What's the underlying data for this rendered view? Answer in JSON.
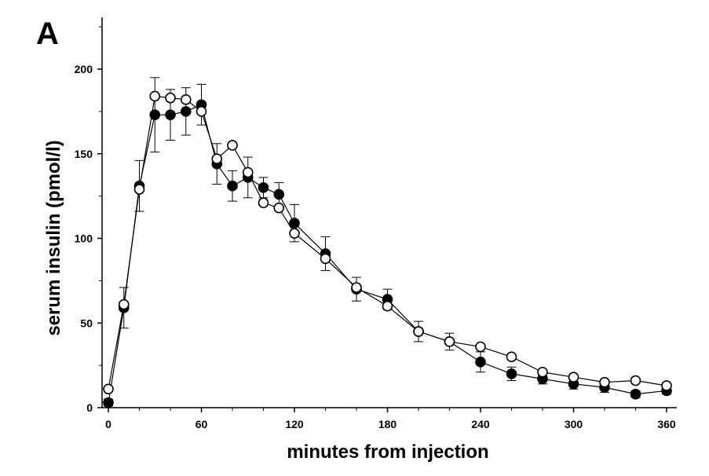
{
  "panel_label": "A",
  "chart_data": {
    "type": "line",
    "xlabel": "minutes from injection",
    "ylabel": "serum insulin (pmol/l)",
    "xlim": [
      -5,
      365
    ],
    "ylim": [
      0,
      230
    ],
    "xticks": [
      0,
      60,
      120,
      180,
      240,
      300,
      360
    ],
    "yticks": [
      0,
      50,
      100,
      150,
      200
    ],
    "x": [
      0,
      10,
      20,
      30,
      40,
      50,
      60,
      70,
      80,
      90,
      100,
      110,
      120,
      140,
      160,
      180,
      200,
      220,
      240,
      260,
      280,
      300,
      320,
      340,
      360
    ],
    "series": [
      {
        "marker": "filled-circle",
        "color": "#000000",
        "values": [
          3,
          59,
          131,
          173,
          173,
          175,
          179,
          144,
          131,
          136,
          130,
          126,
          109,
          91,
          70,
          64,
          45,
          39,
          27,
          20,
          17,
          14,
          12,
          8,
          10
        ],
        "errors": [
          2,
          12,
          15,
          22,
          15,
          14,
          12,
          12,
          9,
          12,
          6,
          7,
          11,
          10,
          7,
          6,
          6,
          5,
          6,
          4,
          3,
          3,
          3,
          2,
          2
        ]
      },
      {
        "marker": "open-circle",
        "color": "#000000",
        "values": [
          11,
          61,
          129,
          184,
          183,
          182,
          175,
          147,
          155,
          139,
          121,
          118,
          103,
          88,
          71,
          60,
          45,
          39,
          36,
          30,
          21,
          18,
          15,
          16,
          13
        ]
      }
    ],
    "grid": false,
    "legend": false
  }
}
